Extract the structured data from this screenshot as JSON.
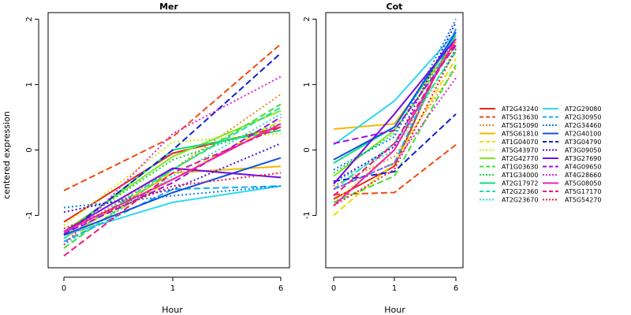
{
  "figure": {
    "ylabel": "centered expression",
    "xlabel": "Hour"
  },
  "chart_data": [
    {
      "type": "line",
      "title": "Mer",
      "xlabel": "Hour",
      "ylabel": "centered expression",
      "categories": [
        "0",
        "1",
        "6"
      ],
      "ylim": [
        -1.8,
        2.1
      ],
      "yticks": [
        -1,
        0,
        1,
        2
      ],
      "grid": false,
      "series": [
        {
          "name": "AT2G43240",
          "values": [
            -1.1,
            -0.05,
            0.35
          ]
        },
        {
          "name": "AT5G13630",
          "values": [
            -0.62,
            0.2,
            1.62
          ]
        },
        {
          "name": "AT5G15090",
          "values": [
            -1.3,
            -0.3,
            0.85
          ]
        },
        {
          "name": "AT5G61810",
          "values": [
            -1.35,
            -0.35,
            -0.25
          ]
        },
        {
          "name": "AT1G04070",
          "values": [
            -1.4,
            -0.45,
            0.45
          ]
        },
        {
          "name": "AT5G43970",
          "values": [
            -1.15,
            0.12,
            0.25
          ]
        },
        {
          "name": "AT2G42770",
          "values": [
            -1.25,
            -0.1,
            0.6
          ]
        },
        {
          "name": "AT1G03630",
          "values": [
            -1.5,
            -0.3,
            0.7
          ]
        },
        {
          "name": "AT1G34000",
          "values": [
            -1.25,
            -0.15,
            0.4
          ]
        },
        {
          "name": "AT2G17972",
          "values": [
            -1.3,
            0.0,
            0.3
          ]
        },
        {
          "name": "AT2G22360",
          "values": [
            -1.35,
            -0.3,
            0.65
          ]
        },
        {
          "name": "AT2G23670",
          "values": [
            -1.45,
            -0.4,
            0.55
          ]
        },
        {
          "name": "AT2G29080",
          "values": [
            -1.3,
            -0.8,
            -0.55
          ]
        },
        {
          "name": "AT2G30950",
          "values": [
            -1.4,
            -0.6,
            -0.55
          ]
        },
        {
          "name": "AT2G34460",
          "values": [
            -0.88,
            -0.7,
            -0.55
          ]
        },
        {
          "name": "AT2G40100",
          "values": [
            -1.3,
            -0.65,
            -0.12
          ]
        },
        {
          "name": "AT3G04790",
          "values": [
            -1.3,
            0.0,
            1.48
          ]
        },
        {
          "name": "AT3G09050",
          "values": [
            -0.95,
            -0.6,
            0.1
          ]
        },
        {
          "name": "AT3G27690",
          "values": [
            -1.25,
            -0.28,
            -0.42
          ]
        },
        {
          "name": "AT4G09650",
          "values": [
            -1.28,
            -0.5,
            0.5
          ]
        },
        {
          "name": "AT4G28660",
          "values": [
            -1.45,
            0.25,
            1.12
          ]
        },
        {
          "name": "AT5G08050",
          "values": [
            -1.25,
            -0.45,
            0.4
          ]
        },
        {
          "name": "AT5G17170",
          "values": [
            -1.62,
            -0.35,
            0.35
          ]
        },
        {
          "name": "AT5G54270",
          "values": [
            -1.2,
            -0.55,
            -0.35
          ]
        }
      ]
    },
    {
      "type": "line",
      "title": "Cot",
      "xlabel": "Hour",
      "categories": [
        "0",
        "1",
        "6"
      ],
      "ylim": [
        -1.8,
        2.1
      ],
      "yticks": [
        -1,
        0,
        1,
        2
      ],
      "grid": false,
      "series": [
        {
          "name": "AT2G43240",
          "values": [
            -0.75,
            -0.25,
            1.85
          ]
        },
        {
          "name": "AT5G13630",
          "values": [
            -0.68,
            -0.65,
            0.08
          ]
        },
        {
          "name": "AT5G15090",
          "values": [
            -0.55,
            -0.1,
            1.25
          ]
        },
        {
          "name": "AT5G61810",
          "values": [
            0.32,
            0.4,
            1.65
          ]
        },
        {
          "name": "AT1G04070",
          "values": [
            -1.0,
            -0.2,
            1.4
          ]
        },
        {
          "name": "AT5G43970",
          "values": [
            -0.8,
            0.0,
            1.5
          ]
        },
        {
          "name": "AT2G42770",
          "values": [
            -0.4,
            0.3,
            1.6
          ]
        },
        {
          "name": "AT1G03630",
          "values": [
            -0.8,
            -0.4,
            1.3
          ]
        },
        {
          "name": "AT1G34000",
          "values": [
            -0.35,
            0.25,
            1.7
          ]
        },
        {
          "name": "AT2G17972",
          "values": [
            -0.2,
            0.35,
            1.75
          ]
        },
        {
          "name": "AT2G22360",
          "values": [
            -0.6,
            0.1,
            1.5
          ]
        },
        {
          "name": "AT2G23670",
          "values": [
            -0.5,
            0.0,
            1.55
          ]
        },
        {
          "name": "AT2G29080",
          "values": [
            0.08,
            0.75,
            1.8
          ]
        },
        {
          "name": "AT2G30950",
          "values": [
            -0.6,
            -0.2,
            1.85
          ]
        },
        {
          "name": "AT2G34460",
          "values": [
            -0.3,
            0.2,
            2.0
          ]
        },
        {
          "name": "AT2G40100",
          "values": [
            -0.15,
            0.35,
            1.8
          ]
        },
        {
          "name": "AT3G04790",
          "values": [
            -0.48,
            -0.33,
            0.55
          ]
        },
        {
          "name": "AT3G09050",
          "values": [
            -0.48,
            0.05,
            1.95
          ]
        },
        {
          "name": "AT3G27690",
          "values": [
            -0.52,
            0.55,
            1.7
          ]
        },
        {
          "name": "AT4G09650",
          "values": [
            0.1,
            0.3,
            1.6
          ]
        },
        {
          "name": "AT4G28660",
          "values": [
            -0.6,
            -0.2,
            1.1
          ]
        },
        {
          "name": "AT5G08050",
          "values": [
            -0.85,
            0.0,
            1.7
          ]
        },
        {
          "name": "AT5G17170",
          "values": [
            -0.7,
            0.1,
            1.65
          ]
        },
        {
          "name": "AT5G54270",
          "values": [
            -0.85,
            -0.3,
            1.55
          ]
        }
      ]
    }
  ],
  "legend": {
    "placement": "right",
    "columns": 2,
    "items": [
      {
        "name": "AT2G43240",
        "color": "#e8231c",
        "dash": "solid"
      },
      {
        "name": "AT5G13630",
        "color": "#f04a10",
        "dash": "dashed"
      },
      {
        "name": "AT5G15090",
        "color": "#f08a1e",
        "dash": "dotted"
      },
      {
        "name": "AT5G61810",
        "color": "#f5b800",
        "dash": "solid"
      },
      {
        "name": "AT1G04070",
        "color": "#e8e000",
        "dash": "dashed"
      },
      {
        "name": "AT5G43970",
        "color": "#c8f000",
        "dash": "dotted"
      },
      {
        "name": "AT2G42770",
        "color": "#80e820",
        "dash": "solid"
      },
      {
        "name": "AT1G03630",
        "color": "#40e030",
        "dash": "dashed"
      },
      {
        "name": "AT1G34000",
        "color": "#10d840",
        "dash": "dotted"
      },
      {
        "name": "AT2G17972",
        "color": "#10e080",
        "dash": "solid"
      },
      {
        "name": "AT2G22360",
        "color": "#20e0a8",
        "dash": "dashed"
      },
      {
        "name": "AT2G23670",
        "color": "#20e0d0",
        "dash": "dotted"
      },
      {
        "name": "AT2G29080",
        "color": "#30d8f0",
        "dash": "solid"
      },
      {
        "name": "AT2G30950",
        "color": "#10b0f0",
        "dash": "dashed"
      },
      {
        "name": "AT2G34460",
        "color": "#1080f0",
        "dash": "dotted"
      },
      {
        "name": "AT2G40100",
        "color": "#1050e0",
        "dash": "solid"
      },
      {
        "name": "AT3G04790",
        "color": "#1020d0",
        "dash": "dashed"
      },
      {
        "name": "AT3G09050",
        "color": "#4010e0",
        "dash": "dotted"
      },
      {
        "name": "AT3G27690",
        "color": "#7010e0",
        "dash": "solid"
      },
      {
        "name": "AT4G09650",
        "color": "#a010e0",
        "dash": "dashed"
      },
      {
        "name": "AT4G28660",
        "color": "#e020e0",
        "dash": "dotted"
      },
      {
        "name": "AT5G08050",
        "color": "#f020b0",
        "dash": "solid"
      },
      {
        "name": "AT5G17170",
        "color": "#f01878",
        "dash": "dashed"
      },
      {
        "name": "AT5G54270",
        "color": "#e81840",
        "dash": "dotted"
      }
    ]
  }
}
